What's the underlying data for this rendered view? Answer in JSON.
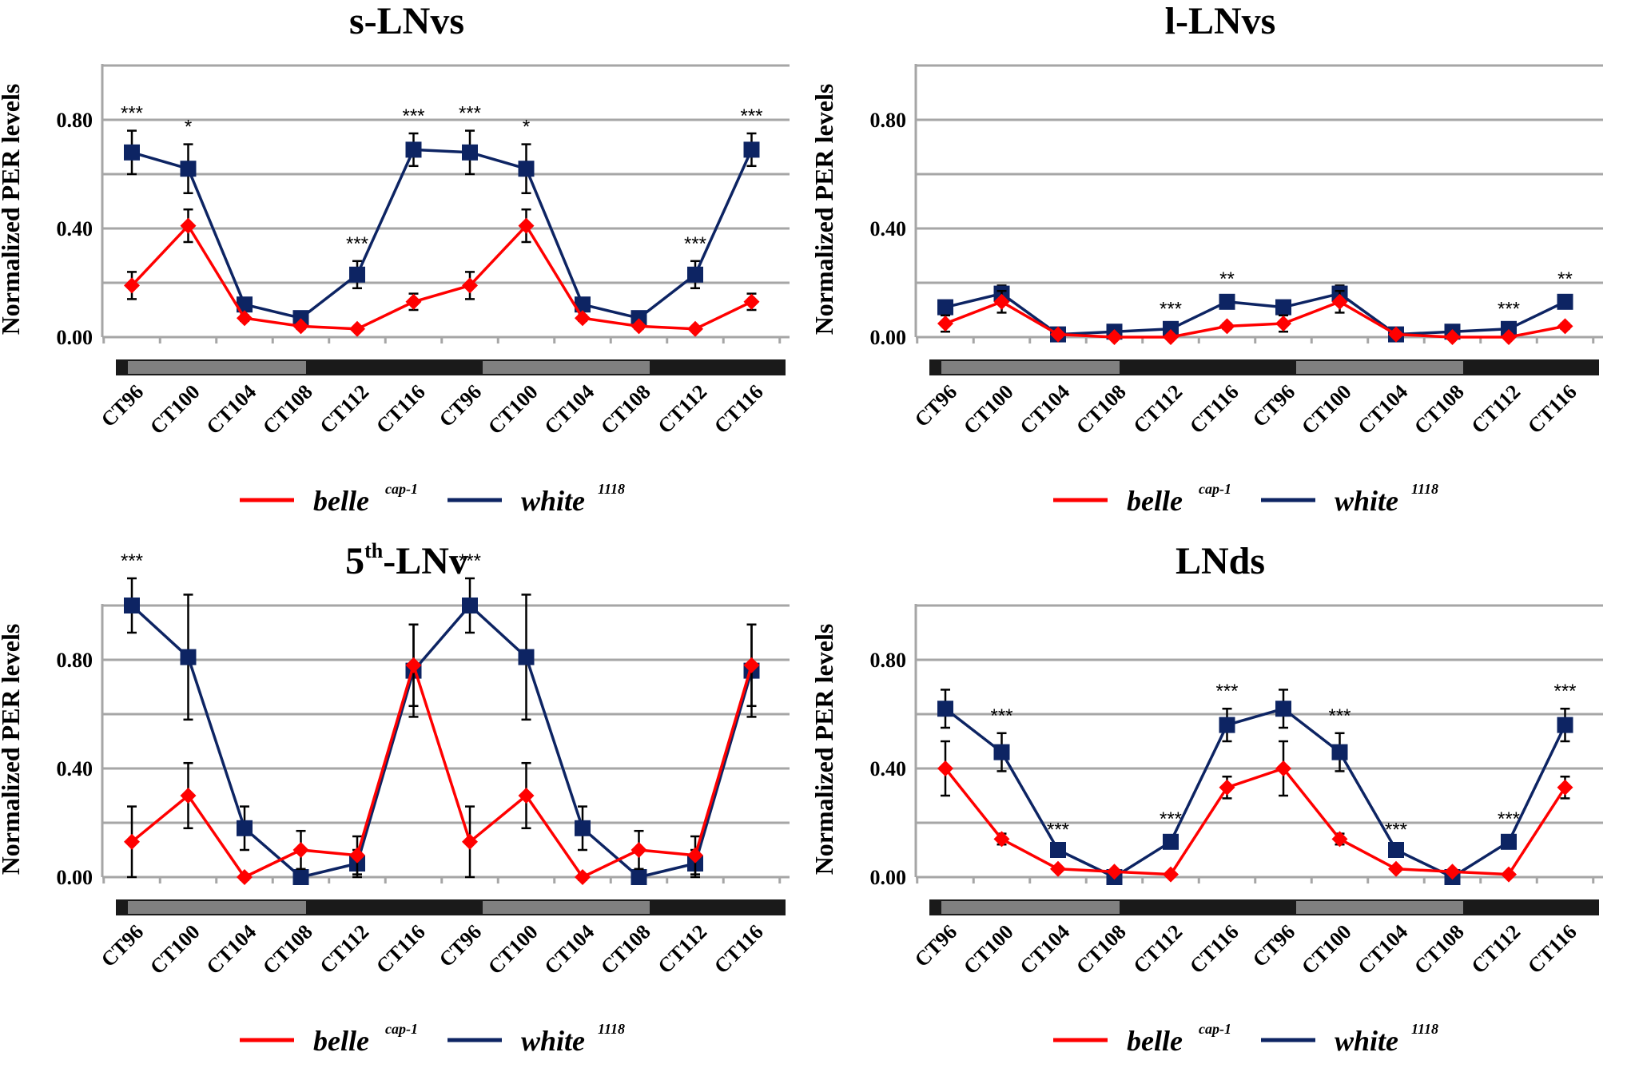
{
  "colors": {
    "belle": "#ff0000",
    "white": "#0d2463",
    "grid": "#a6a6a6",
    "bar_light": "#808080",
    "bar_dark": "#1a1a1a"
  },
  "legend": {
    "belle_label": "belle",
    "belle_sup": "cap-1",
    "white_label": "white",
    "white_sup": "1118"
  },
  "y_axis_label": "Normalized PER levels",
  "y_ticks": [
    "0.00",
    "0.40",
    "0.80"
  ],
  "chart_data": [
    {
      "type": "line",
      "title": "s-LNvs",
      "title_sup": "",
      "title_rest": "",
      "categories": [
        "CT96",
        "CT100",
        "CT104",
        "CT108",
        "CT112",
        "CT116",
        "CT96",
        "CT100",
        "CT104",
        "CT108",
        "CT112",
        "CT116"
      ],
      "ylim": [
        0,
        1.0
      ],
      "series": [
        {
          "name": "white1118",
          "values": [
            0.68,
            0.62,
            0.12,
            0.07,
            0.23,
            0.69,
            0.68,
            0.62,
            0.12,
            0.07,
            0.23,
            0.69
          ],
          "errors": [
            0.08,
            0.09,
            0.02,
            0.01,
            0.05,
            0.06,
            0.08,
            0.09,
            0.02,
            0.01,
            0.05,
            0.06
          ]
        },
        {
          "name": "bellecap-1",
          "values": [
            0.19,
            0.41,
            0.07,
            0.04,
            0.03,
            0.13,
            0.19,
            0.41,
            0.07,
            0.04,
            0.03,
            0.13
          ],
          "errors": [
            0.05,
            0.06,
            0.01,
            0.01,
            0.005,
            0.03,
            0.05,
            0.06,
            0.01,
            0.01,
            0.005,
            0.03
          ]
        }
      ],
      "significance": [
        "***",
        "*",
        "",
        "",
        "***",
        "***",
        "***",
        "*",
        "",
        "",
        "***",
        "***"
      ]
    },
    {
      "type": "line",
      "title": "l-LNvs",
      "title_sup": "",
      "title_rest": "",
      "categories": [
        "CT96",
        "CT100",
        "CT104",
        "CT108",
        "CT112",
        "CT116",
        "CT96",
        "CT100",
        "CT104",
        "CT108",
        "CT112",
        "CT116"
      ],
      "ylim": [
        0,
        1.0
      ],
      "series": [
        {
          "name": "white1118",
          "values": [
            0.11,
            0.16,
            0.01,
            0.02,
            0.03,
            0.13,
            0.11,
            0.16,
            0.01,
            0.02,
            0.03,
            0.13
          ],
          "errors": [
            0.02,
            0.03,
            0.01,
            0.01,
            0.01,
            0.02,
            0.02,
            0.03,
            0.01,
            0.01,
            0.01,
            0.02
          ]
        },
        {
          "name": "bellecap-1",
          "values": [
            0.05,
            0.13,
            0.01,
            0.0,
            0.0,
            0.04,
            0.05,
            0.13,
            0.01,
            0.0,
            0.0,
            0.04
          ],
          "errors": [
            0.03,
            0.04,
            0.005,
            0.005,
            0.005,
            0.01,
            0.03,
            0.04,
            0.005,
            0.005,
            0.005,
            0.01
          ]
        }
      ],
      "significance": [
        "",
        "",
        "",
        "",
        "***",
        "**",
        "",
        "",
        "",
        "",
        "***",
        "**"
      ]
    },
    {
      "type": "line",
      "title": "5",
      "title_sup": "th",
      "title_rest": "-LNv",
      "categories": [
        "CT96",
        "CT100",
        "CT104",
        "CT108",
        "CT112",
        "CT116",
        "CT96",
        "CT100",
        "CT104",
        "CT108",
        "CT112",
        "CT116"
      ],
      "ylim": [
        0,
        1.0
      ],
      "series": [
        {
          "name": "white1118",
          "values": [
            1.0,
            0.81,
            0.18,
            0.0,
            0.05,
            0.76,
            1.0,
            0.81,
            0.18,
            0.0,
            0.05,
            0.76
          ],
          "errors": [
            0.1,
            0.23,
            0.08,
            0.01,
            0.05,
            0.17,
            0.1,
            0.23,
            0.08,
            0.01,
            0.05,
            0.17
          ]
        },
        {
          "name": "bellecap-1",
          "values": [
            0.13,
            0.3,
            0.0,
            0.1,
            0.08,
            0.78,
            0.13,
            0.3,
            0.0,
            0.1,
            0.08,
            0.78
          ],
          "errors": [
            0.13,
            0.12,
            0.01,
            0.07,
            0.07,
            0.15,
            0.13,
            0.12,
            0.01,
            0.07,
            0.07,
            0.15
          ]
        }
      ],
      "significance": [
        "***",
        "",
        "",
        "",
        "",
        "",
        "***",
        "",
        "",
        "",
        "",
        ""
      ]
    },
    {
      "type": "line",
      "title": "LNds",
      "title_sup": "",
      "title_rest": "",
      "categories": [
        "CT96",
        "CT100",
        "CT104",
        "CT108",
        "CT112",
        "CT116",
        "CT96",
        "CT100",
        "CT104",
        "CT108",
        "CT112",
        "CT116"
      ],
      "ylim": [
        0,
        1.0
      ],
      "series": [
        {
          "name": "white1118",
          "values": [
            0.62,
            0.46,
            0.1,
            0.0,
            0.13,
            0.56,
            0.62,
            0.46,
            0.1,
            0.0,
            0.13,
            0.56
          ],
          "errors": [
            0.07,
            0.07,
            0.01,
            0.005,
            0.02,
            0.06,
            0.07,
            0.07,
            0.01,
            0.005,
            0.02,
            0.06
          ]
        },
        {
          "name": "bellecap-1",
          "values": [
            0.4,
            0.14,
            0.03,
            0.02,
            0.01,
            0.33,
            0.4,
            0.14,
            0.03,
            0.02,
            0.01,
            0.33
          ],
          "errors": [
            0.1,
            0.02,
            0.005,
            0.005,
            0.005,
            0.04,
            0.1,
            0.02,
            0.005,
            0.005,
            0.005,
            0.04
          ]
        }
      ],
      "significance": [
        "",
        "***",
        "***",
        "",
        "***",
        "***",
        "",
        "***",
        "***",
        "",
        "***",
        "***"
      ]
    }
  ]
}
